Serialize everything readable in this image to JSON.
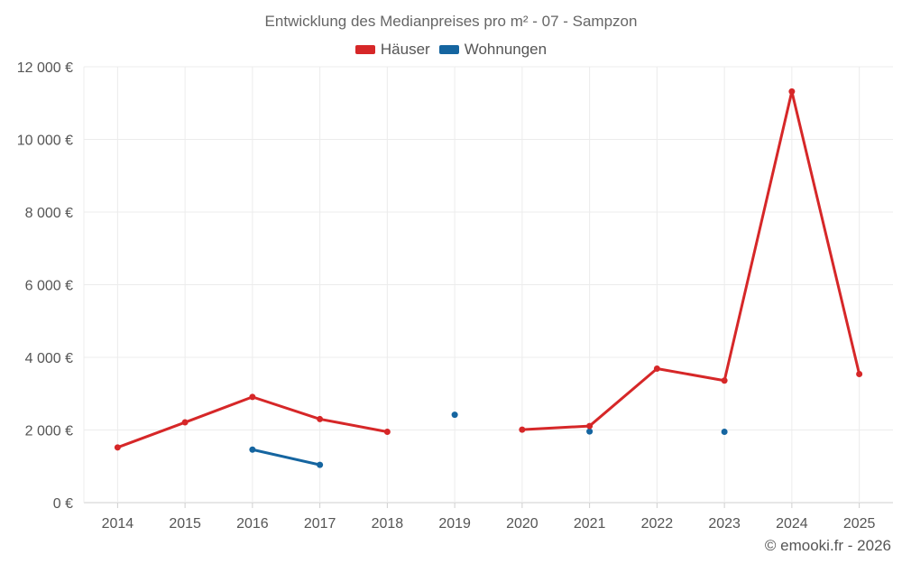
{
  "chart_data": {
    "type": "line",
    "title": "Entwicklung des Medianpreises pro m² - 07 - Sampzon",
    "categories": [
      "2014",
      "2015",
      "2016",
      "2017",
      "2018",
      "2019",
      "2020",
      "2021",
      "2022",
      "2023",
      "2024",
      "2025"
    ],
    "series": [
      {
        "name": "Häuser",
        "color": "#d62728",
        "values": [
          1520,
          2210,
          2910,
          2300,
          1950,
          null,
          2010,
          2110,
          3690,
          3360,
          11320,
          3540
        ]
      },
      {
        "name": "Wohnungen",
        "color": "#1565a0",
        "values": [
          null,
          null,
          1460,
          1040,
          null,
          2420,
          null,
          1960,
          null,
          1950,
          null,
          null
        ]
      }
    ],
    "ylim": [
      0,
      12000
    ],
    "yticks": [
      0,
      2000,
      4000,
      6000,
      8000,
      10000,
      12000
    ],
    "ytick_labels": [
      "0 €",
      "2 000 €",
      "4 000 €",
      "6 000 €",
      "8 000 €",
      "10 000 €",
      "12 000 €"
    ],
    "xlabel": "",
    "ylabel": "",
    "grid": true,
    "legend_position": "top-center"
  },
  "credit": "© emooki.fr - 2026"
}
